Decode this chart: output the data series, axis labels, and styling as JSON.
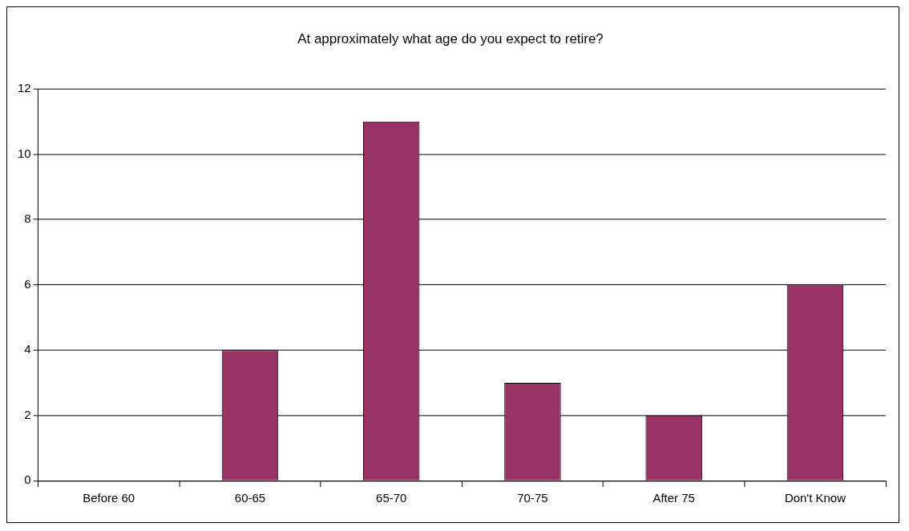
{
  "chart_data": {
    "type": "bar",
    "title": "At approximately what age do you expect to retire?",
    "categories": [
      "Before 60",
      "60-65",
      "65-70",
      "70-75",
      "After 75",
      "Don't Know"
    ],
    "values": [
      0,
      4,
      11,
      3,
      2,
      6
    ],
    "color": "#993366",
    "ylim": [
      0,
      12
    ],
    "yticks": [
      0,
      2,
      4,
      6,
      8,
      10,
      12
    ],
    "grid": "y",
    "legend": false
  }
}
